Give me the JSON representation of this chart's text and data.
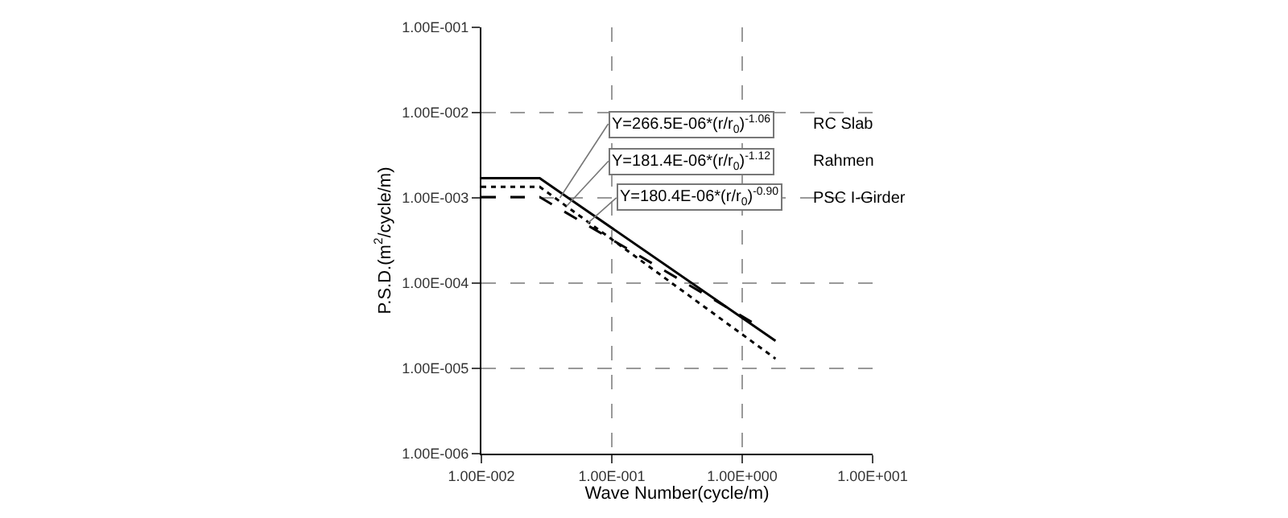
{
  "chart_data": {
    "type": "line",
    "xlabel": "Wave Number(cycle/m)",
    "ylabel": "P.S.D.(m$^{2}$/cycle/m)",
    "log": "xy",
    "grid": true,
    "legend": false,
    "marker": "none",
    "xlim": [
      0.01,
      10
    ],
    "xticks": [
      {
        "value": 0.01,
        "label": "1.00E-002"
      },
      {
        "value": 0.1,
        "label": "1.00E-001"
      },
      {
        "value": 1,
        "label": "1.00E+000"
      },
      {
        "value": 10,
        "label": "1.00E+001"
      }
    ],
    "ylim": [
      1e-06,
      0.1
    ],
    "yticks": [
      {
        "value": 1e-06,
        "label": "1.00E-006"
      },
      {
        "value": 1e-05,
        "label": "1.00E-005"
      },
      {
        "value": 0.0001,
        "label": "1.00E-004"
      },
      {
        "value": 0.001,
        "label": "1.00E-003"
      },
      {
        "value": 0.01,
        "label": "1.00E-002"
      },
      {
        "value": 0.1,
        "label": "1.00E-001"
      }
    ],
    "series": [
      {
        "color": "#000000",
        "line_style": "solid",
        "x": [
          0.01,
          0.028,
          1.8
        ],
        "values": [
          0.0017,
          0.0017,
          2.1e-05
        ]
      },
      {
        "color": "#000000",
        "line_style": "dotted",
        "x": [
          0.01,
          0.028,
          1.8
        ],
        "values": [
          0.00135,
          0.00135,
          1.3e-05
        ]
      },
      {
        "color": "#000000",
        "line_style": "dashed",
        "x": [
          0.01,
          0.028,
          1.2
        ],
        "values": [
          0.00102,
          0.00102,
          3.46e-05
        ]
      }
    ],
    "annotations": [
      {
        "text": "Y=266.5E-06*(r/r$_{0}$)$^{-1.06}$",
        "x": 0.04,
        "y": 0.001
      },
      {
        "text": "Y=181.4E-06*(r/r$_{0}$)$^{-1.12}$",
        "x": 0.045,
        "y": 0.0008
      },
      {
        "text": "Y=180.4E-06*(r/r$_{0}$)$^{-0.90}$",
        "x": 0.065,
        "y": 0.0005
      },
      "RC Slab",
      "Rahmen",
      "PSC I-Girder"
    ]
  }
}
